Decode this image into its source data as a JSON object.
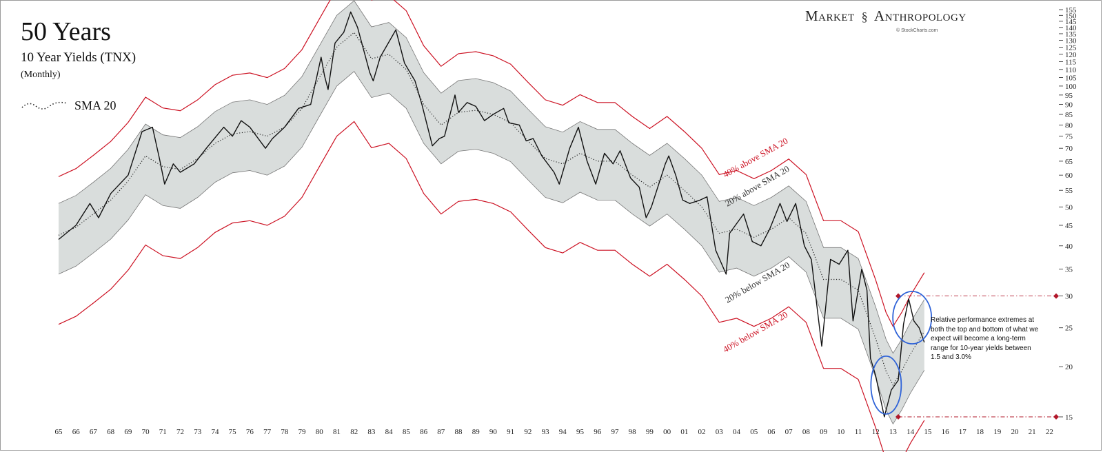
{
  "header": {
    "title": "50 Years",
    "subtitle": "10 Year Yields (TNX)",
    "period": "(Monthly)",
    "legend_label": "SMA 20"
  },
  "brand": {
    "left": "Market",
    "right": "Anthropology",
    "credit": "© StockCharts.com",
    "icon": "dna-icon"
  },
  "note": "Relative performance extremes at both the top and bottom of what we expect will become a long-term range for 10-year yields between 1.5 and 3.0%",
  "colors": {
    "price_line": "#111111",
    "sma": "#222222",
    "band_fill": "#d9dddc",
    "band_stroke": "#777777",
    "outer_band": "#cc1122",
    "circle": "#2f63d8",
    "marker": "#b2182b"
  },
  "chart_data": {
    "type": "line",
    "title": "10 Year Yields (TNX)",
    "scale": "log",
    "ylim": [
      15,
      155
    ],
    "y_ticks": [
      15,
      20,
      25,
      30,
      35,
      40,
      45,
      50,
      55,
      60,
      65,
      70,
      75,
      80,
      85,
      90,
      95,
      100,
      105,
      110,
      115,
      120,
      125,
      130,
      135,
      140,
      145,
      150,
      155
    ],
    "x_tick_labels": [
      "65",
      "66",
      "67",
      "68",
      "69",
      "70",
      "71",
      "72",
      "73",
      "74",
      "75",
      "76",
      "77",
      "78",
      "79",
      "80",
      "81",
      "82",
      "83",
      "84",
      "85",
      "86",
      "87",
      "88",
      "89",
      "90",
      "91",
      "92",
      "93",
      "94",
      "95",
      "96",
      "97",
      "98",
      "99",
      "00",
      "01",
      "02",
      "03",
      "04",
      "05",
      "06",
      "07",
      "08",
      "09",
      "10",
      "11",
      "12",
      "13",
      "14",
      "15",
      "16",
      "17",
      "18",
      "19",
      "20",
      "21",
      "22"
    ],
    "x_range": [
      1965,
      2022.5
    ],
    "band_labels": {
      "plus40": "40% above SMA 20",
      "plus20": "20% above SMA 20",
      "minus20": "20% below SMA 20",
      "minus40": "40% below SMA 20"
    },
    "reference_levels": [
      30,
      15
    ],
    "highlight_circles": [
      {
        "x": 2012.6,
        "y": 18
      },
      {
        "x": 2014.1,
        "y": 26.5
      }
    ],
    "series": [
      {
        "name": "TNX",
        "points": [
          [
            1965,
            41.5
          ],
          [
            1966,
            45
          ],
          [
            1966.8,
            51
          ],
          [
            1967.3,
            47
          ],
          [
            1968,
            54
          ],
          [
            1969,
            60
          ],
          [
            1969.8,
            77
          ],
          [
            1970.4,
            79
          ],
          [
            1970.8,
            66
          ],
          [
            1971.1,
            57
          ],
          [
            1971.6,
            64
          ],
          [
            1972,
            61
          ],
          [
            1972.8,
            64
          ],
          [
            1973.5,
            70
          ],
          [
            1974.5,
            79
          ],
          [
            1975,
            75
          ],
          [
            1975.5,
            82
          ],
          [
            1976,
            79
          ],
          [
            1976.9,
            70
          ],
          [
            1977.3,
            74
          ],
          [
            1978,
            79
          ],
          [
            1978.8,
            88
          ],
          [
            1979.5,
            90
          ],
          [
            1980.1,
            118
          ],
          [
            1980.3,
            106
          ],
          [
            1980.5,
            98
          ],
          [
            1980.9,
            128
          ],
          [
            1981.4,
            136
          ],
          [
            1981.8,
            153
          ],
          [
            1982.2,
            140
          ],
          [
            1982.9,
            108
          ],
          [
            1983.1,
            103
          ],
          [
            1983.5,
            118
          ],
          [
            1984.4,
            138
          ],
          [
            1984.9,
            114
          ],
          [
            1985.5,
            103
          ],
          [
            1985.9,
            90
          ],
          [
            1986.5,
            71
          ],
          [
            1986.9,
            74
          ],
          [
            1987.2,
            75
          ],
          [
            1987.8,
            95
          ],
          [
            1988,
            86
          ],
          [
            1988.5,
            91
          ],
          [
            1989,
            89
          ],
          [
            1989.5,
            82
          ],
          [
            1990,
            85
          ],
          [
            1990.6,
            88
          ],
          [
            1990.9,
            81
          ],
          [
            1991.5,
            80
          ],
          [
            1991.9,
            73
          ],
          [
            1992.3,
            74
          ],
          [
            1992.8,
            67
          ],
          [
            1993.5,
            61
          ],
          [
            1993.8,
            57
          ],
          [
            1994.4,
            70
          ],
          [
            1994.9,
            79
          ],
          [
            1995.4,
            65
          ],
          [
            1995.9,
            57
          ],
          [
            1996.4,
            68
          ],
          [
            1996.9,
            64
          ],
          [
            1997.3,
            69
          ],
          [
            1997.9,
            59
          ],
          [
            1998.4,
            56
          ],
          [
            1998.8,
            47
          ],
          [
            1999.1,
            50
          ],
          [
            1999.9,
            64
          ],
          [
            2000.1,
            67
          ],
          [
            2000.5,
            60
          ],
          [
            2000.9,
            52
          ],
          [
            2001.3,
            51
          ],
          [
            2001.9,
            52
          ],
          [
            2002.3,
            53
          ],
          [
            2002.8,
            39
          ],
          [
            2003.4,
            34
          ],
          [
            2003.6,
            43
          ],
          [
            2004.4,
            48
          ],
          [
            2004.9,
            41
          ],
          [
            2005.4,
            40
          ],
          [
            2005.9,
            44
          ],
          [
            2006.5,
            51
          ],
          [
            2006.9,
            46
          ],
          [
            2007.4,
            51
          ],
          [
            2007.9,
            40
          ],
          [
            2008.3,
            37
          ],
          [
            2008.9,
            22.5
          ],
          [
            2009.4,
            37
          ],
          [
            2009.9,
            36
          ],
          [
            2010.4,
            39
          ],
          [
            2010.7,
            26
          ],
          [
            2011.2,
            35
          ],
          [
            2011.5,
            31
          ],
          [
            2011.7,
            21
          ],
          [
            2012.0,
            19
          ],
          [
            2012.5,
            15
          ],
          [
            2012.9,
            17.5
          ],
          [
            2013.3,
            18.5
          ],
          [
            2013.6,
            25.5
          ],
          [
            2013.9,
            29.5
          ],
          [
            2014.2,
            26
          ],
          [
            2014.5,
            25
          ],
          [
            2014.8,
            23
          ]
        ]
      },
      {
        "name": "SMA 20",
        "points": [
          [
            1965,
            42.5
          ],
          [
            1966,
            44.5
          ],
          [
            1967,
            48
          ],
          [
            1968,
            52
          ],
          [
            1969,
            58
          ],
          [
            1970,
            67
          ],
          [
            1971,
            63
          ],
          [
            1972,
            62
          ],
          [
            1973,
            66
          ],
          [
            1974,
            72
          ],
          [
            1975,
            76
          ],
          [
            1976,
            77
          ],
          [
            1977,
            75
          ],
          [
            1978,
            79
          ],
          [
            1979,
            88
          ],
          [
            1980,
            105
          ],
          [
            1981,
            125
          ],
          [
            1982,
            136
          ],
          [
            1983,
            117
          ],
          [
            1984,
            120
          ],
          [
            1985,
            110
          ],
          [
            1986,
            90
          ],
          [
            1987,
            80
          ],
          [
            1988,
            86
          ],
          [
            1989,
            87
          ],
          [
            1990,
            85
          ],
          [
            1991,
            81
          ],
          [
            1992,
            73
          ],
          [
            1993,
            66
          ],
          [
            1994,
            64
          ],
          [
            1995,
            68
          ],
          [
            1996,
            65
          ],
          [
            1997,
            65
          ],
          [
            1998,
            60
          ],
          [
            1999,
            56
          ],
          [
            2000,
            60
          ],
          [
            2001,
            55
          ],
          [
            2002,
            50
          ],
          [
            2003,
            43
          ],
          [
            2004,
            44
          ],
          [
            2005,
            42
          ],
          [
            2006,
            44
          ],
          [
            2007,
            47
          ],
          [
            2008,
            43
          ],
          [
            2009,
            33
          ],
          [
            2010,
            33
          ],
          [
            2011,
            31
          ],
          [
            2012,
            23.5
          ],
          [
            2012.6,
            19.5
          ],
          [
            2013,
            18
          ],
          [
            2013.5,
            19.5
          ],
          [
            2014,
            21.5
          ],
          [
            2014.8,
            24.5
          ]
        ]
      }
    ]
  }
}
